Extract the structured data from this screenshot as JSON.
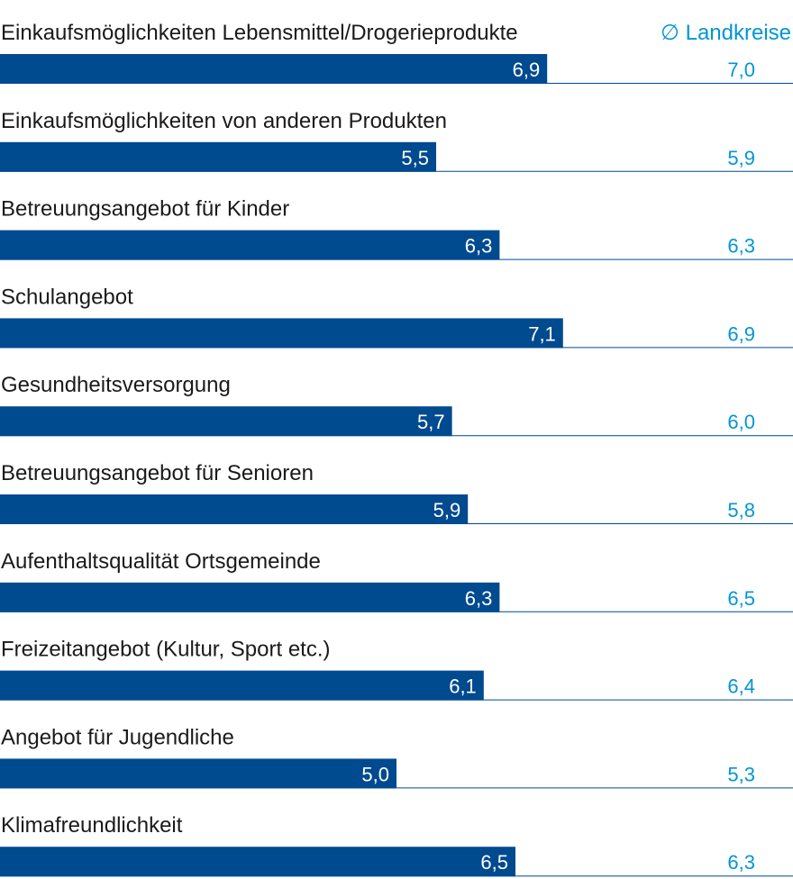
{
  "chart_data": {
    "type": "bar",
    "orientation": "horizontal",
    "legend": {
      "label": "Landkreise",
      "symbol": "∅"
    },
    "categories": [
      "Einkaufsmöglichkeiten Lebensmittel/Drogerieprodukte",
      "Einkaufsmöglichkeiten von anderen Produkten",
      "Betreuungsangebot für Kinder",
      "Schulangebot",
      "Gesundheitsversorgung",
      "Betreuungsangebot für Senioren",
      "Aufenthaltsqualität Ortsgemeinde",
      "Freizeitangebot (Kultur, Sport etc.)",
      "Angebot für Jugendliche",
      "Klimafreundlichkeit"
    ],
    "series": [
      {
        "values": [
          6.9,
          5.5,
          6.3,
          7.1,
          5.7,
          5.9,
          6.3,
          6.1,
          5.0,
          6.5
        ],
        "labels": [
          "6,9",
          "5,5",
          "6,3",
          "7,1",
          "5,7",
          "5,9",
          "6,3",
          "6,1",
          "5,0",
          "6,5"
        ],
        "color": "#004a8f"
      },
      {
        "name": "∅ Landkreise",
        "values": [
          7.0,
          5.9,
          6.3,
          6.9,
          6.0,
          5.8,
          6.5,
          6.4,
          5.3,
          6.3
        ],
        "labels": [
          "7,0",
          "5,9",
          "6,3",
          "6,9",
          "6,0",
          "5,8",
          "6,5",
          "6,4",
          "5,3",
          "6,3"
        ],
        "color": "#0096d6"
      }
    ],
    "xlim": [
      0,
      10
    ],
    "grid": false
  },
  "colors": {
    "bar": "#004a8f",
    "reference": "#0096d6",
    "rule": "#004a8f",
    "text": "#1a1a1a"
  }
}
